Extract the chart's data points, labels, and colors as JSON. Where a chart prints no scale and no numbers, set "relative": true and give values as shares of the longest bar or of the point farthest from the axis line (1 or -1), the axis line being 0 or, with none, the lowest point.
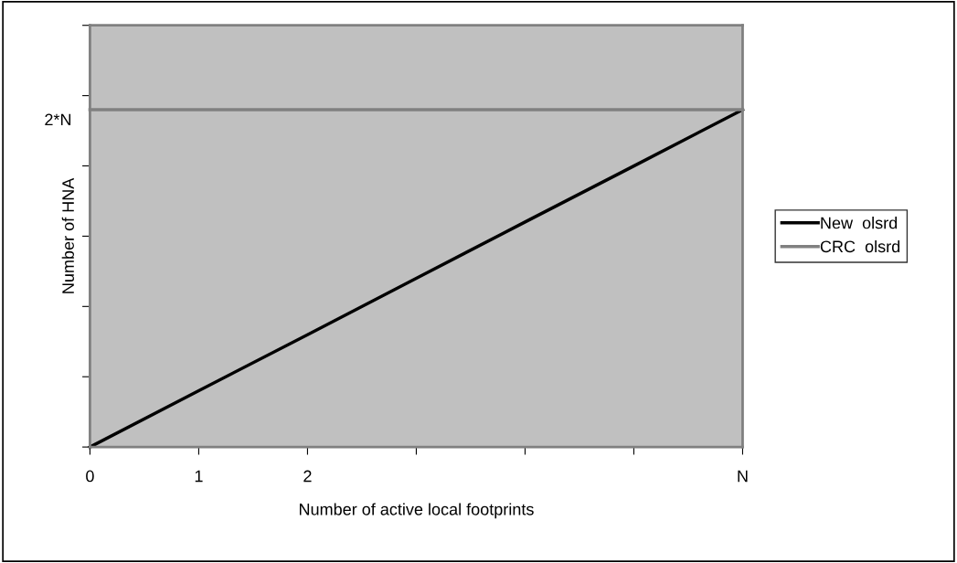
{
  "chart_data": {
    "type": "line",
    "xlabel": "Number of active local footprints",
    "ylabel": "Number of HNA",
    "categories": [
      "0",
      "1",
      "2",
      null,
      null,
      null,
      "N"
    ],
    "relative": true,
    "annotations": [
      "2*N"
    ],
    "series": [
      {
        "name": "New  olsrd",
        "color": "#000000",
        "values": [
          0,
          0.167,
          0.333,
          0.5,
          0.667,
          0.833,
          1
        ]
      },
      {
        "name": "CRC  olsrd",
        "color": "#808080",
        "values": [
          1,
          1,
          1,
          1,
          1,
          1,
          1
        ]
      }
    ],
    "legend": "right",
    "grid": false,
    "marker": "none",
    "line_style": "solid"
  }
}
